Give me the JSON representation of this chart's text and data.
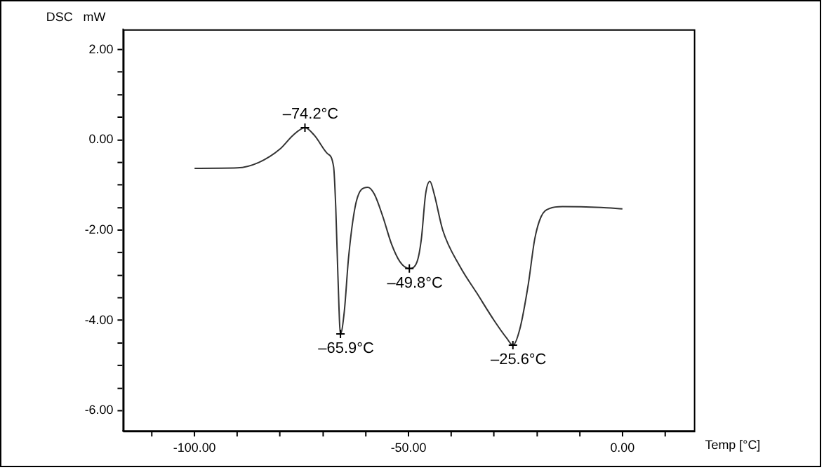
{
  "chart_data": {
    "type": "line",
    "xlabel": "Temp [°C]",
    "ylabel": "DSC mW",
    "x": [
      -100,
      -90,
      -85,
      -80,
      -77,
      -74.2,
      -72,
      -69,
      -67.5,
      -67,
      -66.5,
      -65.9,
      -65,
      -64,
      -62.5,
      -61,
      -59.5,
      -58,
      -56,
      -54,
      -52,
      -49.8,
      -48,
      -47,
      -46,
      -45,
      -44,
      -42,
      -38,
      -34,
      -30,
      -27,
      -25.6,
      -24,
      -22,
      -20.5,
      -19,
      -17,
      -14,
      -5,
      0
    ],
    "series": [
      {
        "color": "#333333",
        "values": [
          -0.63,
          -0.62,
          -0.5,
          -0.2,
          0.1,
          0.27,
          0.1,
          -0.3,
          -0.6,
          -1.5,
          -3.0,
          -4.3,
          -3.8,
          -2.6,
          -1.5,
          -1.1,
          -1.05,
          -1.2,
          -1.7,
          -2.3,
          -2.7,
          -2.85,
          -2.7,
          -2.2,
          -1.2,
          -0.92,
          -1.2,
          -2.0,
          -2.8,
          -3.4,
          -4.0,
          -4.4,
          -4.55,
          -4.2,
          -3.2,
          -2.2,
          -1.7,
          -1.52,
          -1.48,
          -1.5,
          -1.53
        ]
      }
    ],
    "xlim": [
      -116.7,
      16.7
    ],
    "ylim": [
      -6.45,
      2.45
    ],
    "xticks": [
      {
        "value": -110,
        "label": null
      },
      {
        "value": -100,
        "label": "-100.00"
      },
      {
        "value": -90,
        "label": null
      },
      {
        "value": -80,
        "label": null
      },
      {
        "value": -70,
        "label": null
      },
      {
        "value": -60,
        "label": null
      },
      {
        "value": -50,
        "label": "-50.00"
      },
      {
        "value": -40,
        "label": null
      },
      {
        "value": -30,
        "label": null
      },
      {
        "value": -20,
        "label": null
      },
      {
        "value": -10,
        "label": null
      },
      {
        "value": 0,
        "label": "0.00"
      },
      {
        "value": 10,
        "label": null
      }
    ],
    "yticks": [
      {
        "value": 2,
        "label": "2.00"
      },
      {
        "value": 1.5,
        "label": null
      },
      {
        "value": 1,
        "label": null
      },
      {
        "value": 0.5,
        "label": null
      },
      {
        "value": 0,
        "label": "0.00"
      },
      {
        "value": -0.5,
        "label": null
      },
      {
        "value": -1,
        "label": null
      },
      {
        "value": -1.5,
        "label": null
      },
      {
        "value": -2,
        "label": "-2.00"
      },
      {
        "value": -2.5,
        "label": null
      },
      {
        "value": -3,
        "label": null
      },
      {
        "value": -3.5,
        "label": null
      },
      {
        "value": -4,
        "label": "-4.00"
      },
      {
        "value": -4.5,
        "label": null
      },
      {
        "value": -5,
        "label": null
      },
      {
        "value": -5.5,
        "label": null
      },
      {
        "value": -6,
        "label": "-6.00"
      }
    ],
    "annotations": [
      {
        "text": "–74.2°C",
        "x": -74.2,
        "y": 0.27
      },
      {
        "text": "–65.9°C",
        "x": -65.9,
        "y": -4.3
      },
      {
        "text": "–49.8°C",
        "x": -49.8,
        "y": -2.85
      },
      {
        "text": "–25.6°C",
        "x": -25.6,
        "y": -4.55
      }
    ],
    "grid": false,
    "legend": false,
    "marker": "none",
    "line_style": "solid"
  }
}
